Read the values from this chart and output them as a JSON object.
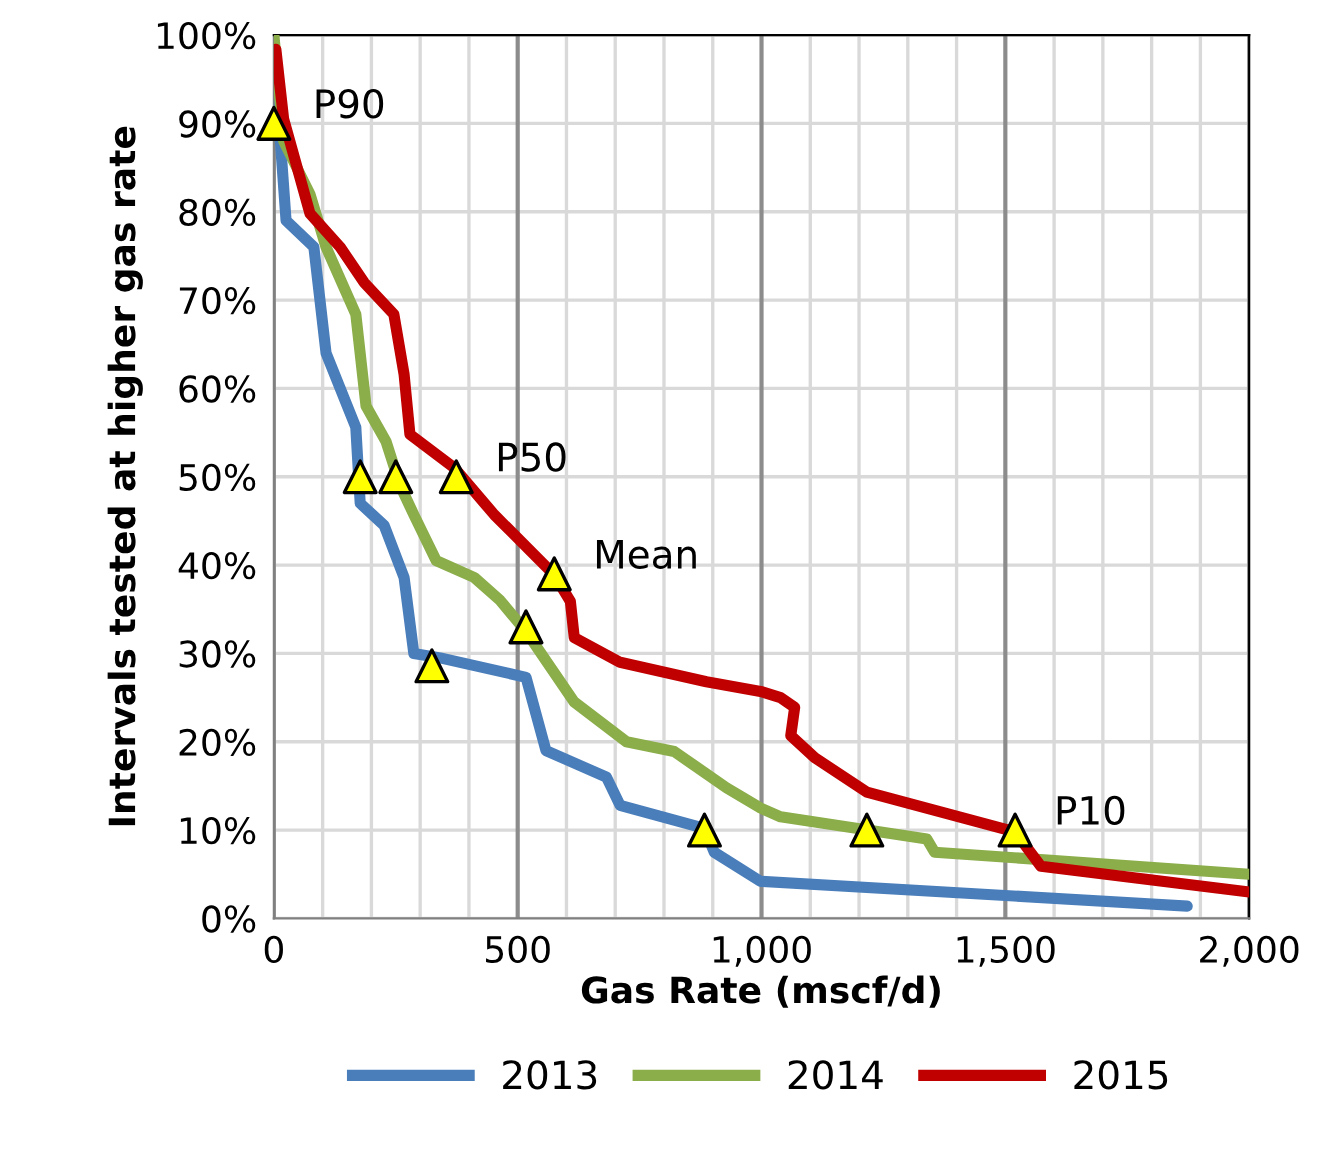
{
  "chart_data": {
    "type": "line",
    "xlabel": "Gas Rate (mscf/d)",
    "ylabel": "Intervals tested at higher gas rate",
    "xlim": [
      0,
      2000
    ],
    "ylim": [
      0,
      100
    ],
    "xticks": [
      {
        "value": 0,
        "label": "0"
      },
      {
        "value": 100,
        "label": null
      },
      {
        "value": 200,
        "label": null
      },
      {
        "value": 300,
        "label": null
      },
      {
        "value": 400,
        "label": null
      },
      {
        "value": 500,
        "label": "500"
      },
      {
        "value": 600,
        "label": null
      },
      {
        "value": 700,
        "label": null
      },
      {
        "value": 800,
        "label": null
      },
      {
        "value": 900,
        "label": null
      },
      {
        "value": 1000,
        "label": "1,000"
      },
      {
        "value": 1100,
        "label": null
      },
      {
        "value": 1200,
        "label": null
      },
      {
        "value": 1300,
        "label": null
      },
      {
        "value": 1400,
        "label": null
      },
      {
        "value": 1500,
        "label": "1,500"
      },
      {
        "value": 1600,
        "label": null
      },
      {
        "value": 1700,
        "label": null
      },
      {
        "value": 1800,
        "label": null
      },
      {
        "value": 1900,
        "label": null
      },
      {
        "value": 2000,
        "label": "2,000"
      }
    ],
    "yticks": [
      {
        "value": 0,
        "label": "0%"
      },
      {
        "value": 10,
        "label": "10%"
      },
      {
        "value": 20,
        "label": "20%"
      },
      {
        "value": 30,
        "label": "30%"
      },
      {
        "value": 40,
        "label": "40%"
      },
      {
        "value": 50,
        "label": "50%"
      },
      {
        "value": 60,
        "label": "60%"
      },
      {
        "value": 70,
        "label": "70%"
      },
      {
        "value": 80,
        "label": "80%"
      },
      {
        "value": 90,
        "label": "90%"
      },
      {
        "value": 100,
        "label": "100%"
      }
    ],
    "grid": true,
    "legend": "bottom",
    "marker": "none",
    "line_style": "solid",
    "series": [
      {
        "name": "2013",
        "color": "#4a7ebb",
        "x": [
          0,
          12,
          25,
          82,
          107,
          168,
          177,
          226,
          267,
          287,
          341,
          517,
          558,
          682,
          710,
          883,
          903,
          998,
          1873
        ],
        "values": [
          93,
          89,
          79,
          76,
          64,
          55.6,
          47,
          44.5,
          38.6,
          30,
          29.5,
          27.3,
          19,
          16,
          12.8,
          10.2,
          7.5,
          4.2,
          1.4
        ]
      },
      {
        "name": "2014",
        "color": "#8bad4a",
        "x": [
          0,
          20,
          74,
          107,
          168,
          189,
          230,
          259,
          287,
          333,
          411,
          464,
          517,
          616,
          723,
          821,
          928,
          998,
          1039,
          1339,
          1355,
          2000
        ],
        "values": [
          100,
          88,
          82,
          76,
          68.4,
          58,
          54,
          49,
          45.7,
          40.5,
          38.6,
          36,
          32.5,
          24.5,
          20,
          18.9,
          14.8,
          12.5,
          11.5,
          9,
          7.5,
          5
        ]
      },
      {
        "name": "2015",
        "color": "#c00000",
        "x": [
          4,
          20,
          74,
          136,
          185,
          246,
          267,
          279,
          370,
          452,
          575,
          608,
          616,
          710,
          887,
          998,
          1039,
          1068,
          1060,
          1109,
          1216,
          1520,
          1573,
          2000
        ],
        "values": [
          98.4,
          90.5,
          79.8,
          76,
          72,
          68.4,
          61.6,
          54.8,
          51,
          45.7,
          38.9,
          35.9,
          31.8,
          29,
          26.8,
          25.7,
          25,
          23.9,
          20.7,
          18.2,
          14.3,
          9.8,
          5.9,
          3
        ]
      },
      {
        "type": "scatter",
        "marker": "triangle",
        "color": "#ffff00",
        "x": [
          0,
          177,
          250,
          374,
          324,
          517,
          575,
          883,
          1216,
          1520
        ],
        "values": [
          90,
          50,
          50,
          50,
          28.6,
          33,
          39,
          10,
          10,
          10
        ]
      }
    ],
    "annotations": [
      {
        "text": "P90",
        "x": 0,
        "y": 90
      },
      {
        "text": "P50",
        "x": 374,
        "y": 50
      },
      {
        "text": "Mean",
        "x": 575,
        "y": 39
      },
      {
        "text": "P10",
        "x": 1520,
        "y": 10
      }
    ]
  }
}
